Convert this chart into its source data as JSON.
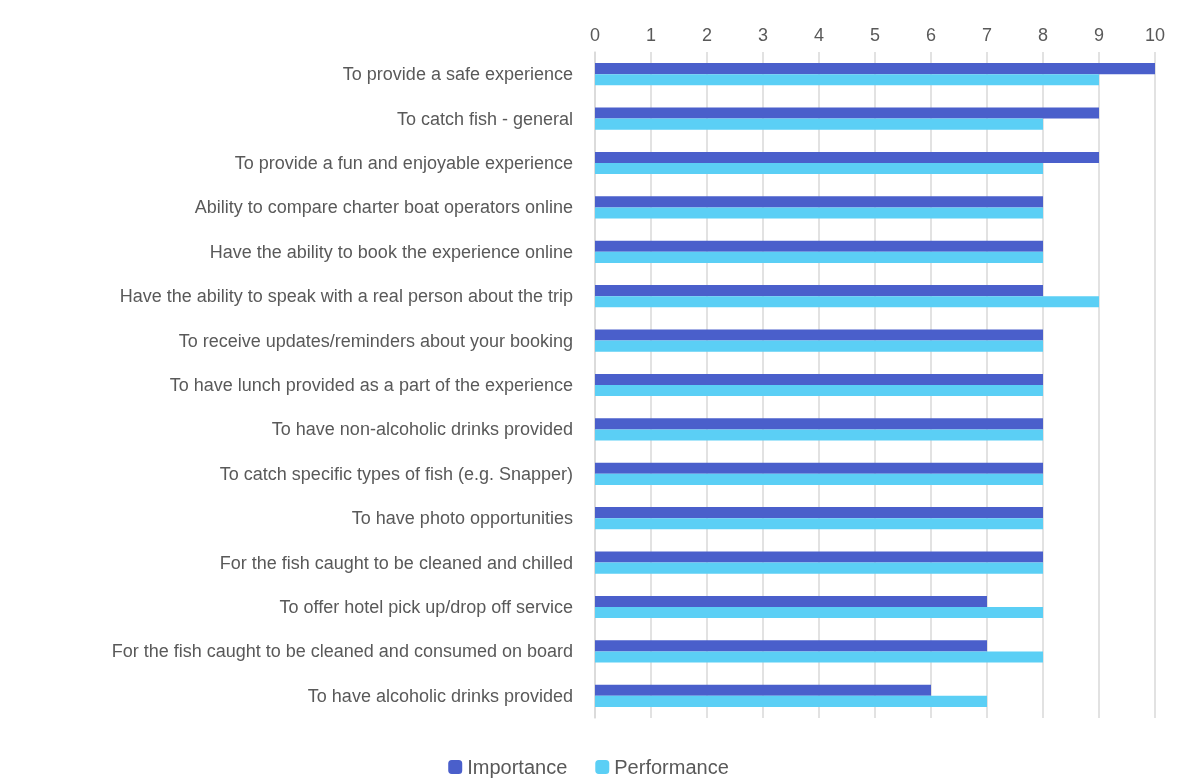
{
  "chart_data": {
    "type": "bar",
    "orientation": "horizontal",
    "categories": [
      "To provide a safe experience",
      "To catch fish - general",
      "To provide a fun and enjoyable experience",
      "Ability to compare charter boat operators online",
      "Have the ability to book the experience online",
      "Have the ability to speak with a real person about the trip",
      "To receive updates/reminders about your booking",
      "To have lunch provided as a part of the experience",
      "To have non-alcoholic drinks provided",
      "To catch specific types of fish (e.g. Snapper)",
      "To have photo opportunities",
      "For the fish caught to be cleaned and chilled",
      "To offer hotel pick up/drop off service",
      "For the fish caught to be cleaned and consumed on board",
      "To have alcoholic drinks provided"
    ],
    "series": [
      {
        "name": "Importance",
        "color": "#4a5fcb",
        "values": [
          10,
          9,
          9,
          8,
          8,
          8,
          8,
          8,
          8,
          8,
          8,
          8,
          7,
          7,
          6
        ]
      },
      {
        "name": "Performance",
        "color": "#5bcff5",
        "values": [
          9,
          8,
          8,
          8,
          8,
          9,
          8,
          8,
          8,
          8,
          8,
          8,
          8,
          8,
          7
        ]
      }
    ],
    "xlim": [
      0,
      10
    ],
    "xticks": [
      0,
      1,
      2,
      3,
      4,
      5,
      6,
      7,
      8,
      9,
      10
    ],
    "grid": "x",
    "legend": "bottom"
  }
}
